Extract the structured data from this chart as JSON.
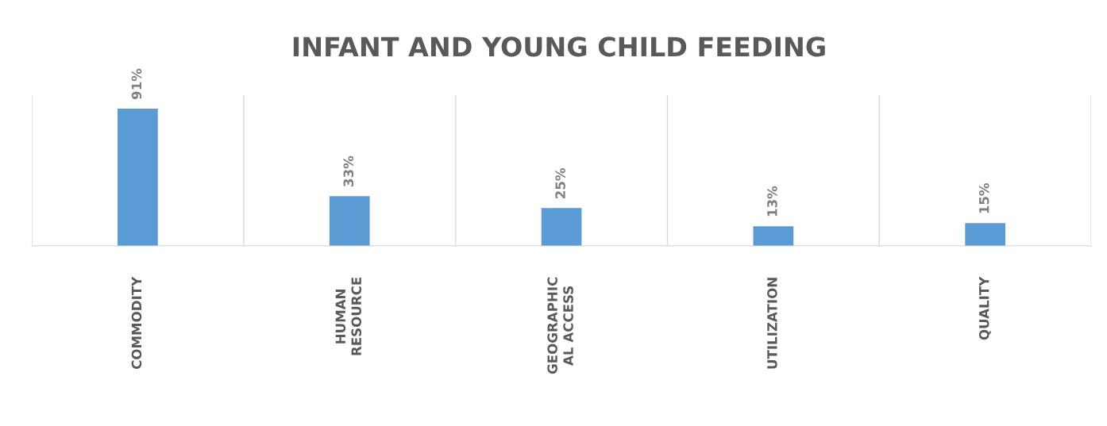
{
  "chart_data": {
    "type": "bar",
    "title": "INFANT AND YOUNG CHILD FEEDING",
    "categories": [
      "COMMODITY",
      "HUMAN\nRESOURCE",
      "GEOGRAPHIC\nAL ACCESS",
      "UTILIZATION",
      "QUALITY"
    ],
    "values": [
      91,
      33,
      25,
      13,
      15
    ],
    "color": "#5b9bd5",
    "value_labels": [
      "91%",
      "33%",
      "25%",
      "13%",
      "15%"
    ],
    "grid": "x"
  }
}
